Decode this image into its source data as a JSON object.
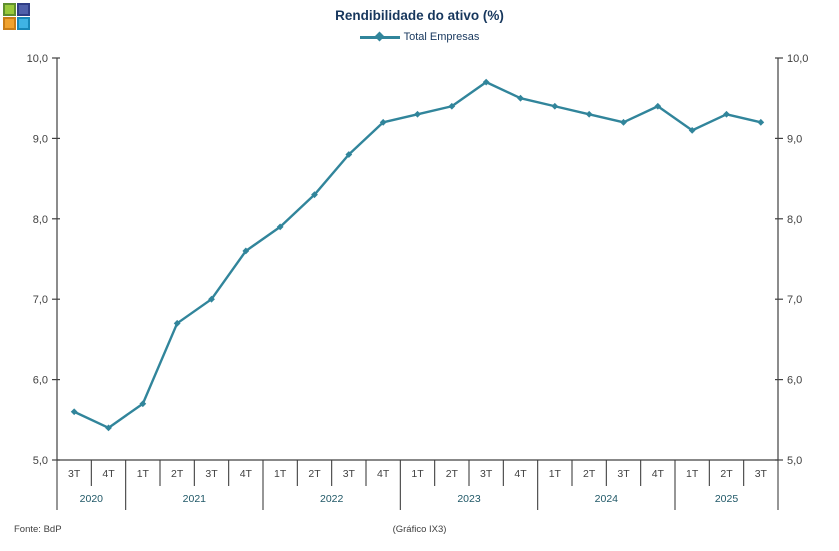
{
  "app_icon": {
    "name": "colored-grid-logo",
    "squares": [
      {
        "name": "green",
        "fill": "#9ACA3C",
        "border": "#5F8F2F"
      },
      {
        "name": "indigo",
        "fill": "#5060AA",
        "border": "#303E86"
      },
      {
        "name": "orange",
        "fill": "#F0A22E",
        "border": "#C87D18"
      },
      {
        "name": "cyan",
        "fill": "#3FB3E4",
        "border": "#1787B8"
      }
    ]
  },
  "chart": {
    "title": "Rendibilidade do ativo (%)",
    "legend": "Total Empresas",
    "series_color": "#31859B",
    "title_color": "#17375D",
    "axis_color": "#404040",
    "year_label_color": "#205867"
  },
  "footer": {
    "source": "Fonte: BdP",
    "caption": "(Gráfico IX3)"
  },
  "chart_data": {
    "type": "line",
    "title": "Rendibilidade do ativo (%)",
    "legend_entries": [
      "Total Empresas"
    ],
    "legend_position": "top-center",
    "grid": false,
    "dual_y_axis": true,
    "marker": "diamond",
    "ylim": [
      5.0,
      10.0
    ],
    "y_tick_step": 1.0,
    "y_tick_labels": [
      "5,0",
      "6,0",
      "7,0",
      "8,0",
      "9,0",
      "10,0"
    ],
    "x_groups": [
      {
        "year": "2020",
        "quarters": [
          "3T",
          "4T"
        ]
      },
      {
        "year": "2021",
        "quarters": [
          "1T",
          "2T",
          "3T",
          "4T"
        ]
      },
      {
        "year": "2022",
        "quarters": [
          "1T",
          "2T",
          "3T",
          "4T"
        ]
      },
      {
        "year": "2023",
        "quarters": [
          "1T",
          "2T",
          "3T",
          "4T"
        ]
      },
      {
        "year": "2024",
        "quarters": [
          "1T",
          "2T",
          "3T",
          "4T"
        ]
      },
      {
        "year": "2025",
        "quarters": [
          "1T",
          "2T",
          "3T"
        ]
      }
    ],
    "series": [
      {
        "name": "Total Empresas",
        "values": [
          5.6,
          5.4,
          5.7,
          6.7,
          7.0,
          7.6,
          7.9,
          8.3,
          8.8,
          9.2,
          9.3,
          9.4,
          9.7,
          9.5,
          9.4,
          9.3,
          9.2,
          9.4,
          9.1,
          9.3,
          9.2
        ]
      }
    ]
  }
}
